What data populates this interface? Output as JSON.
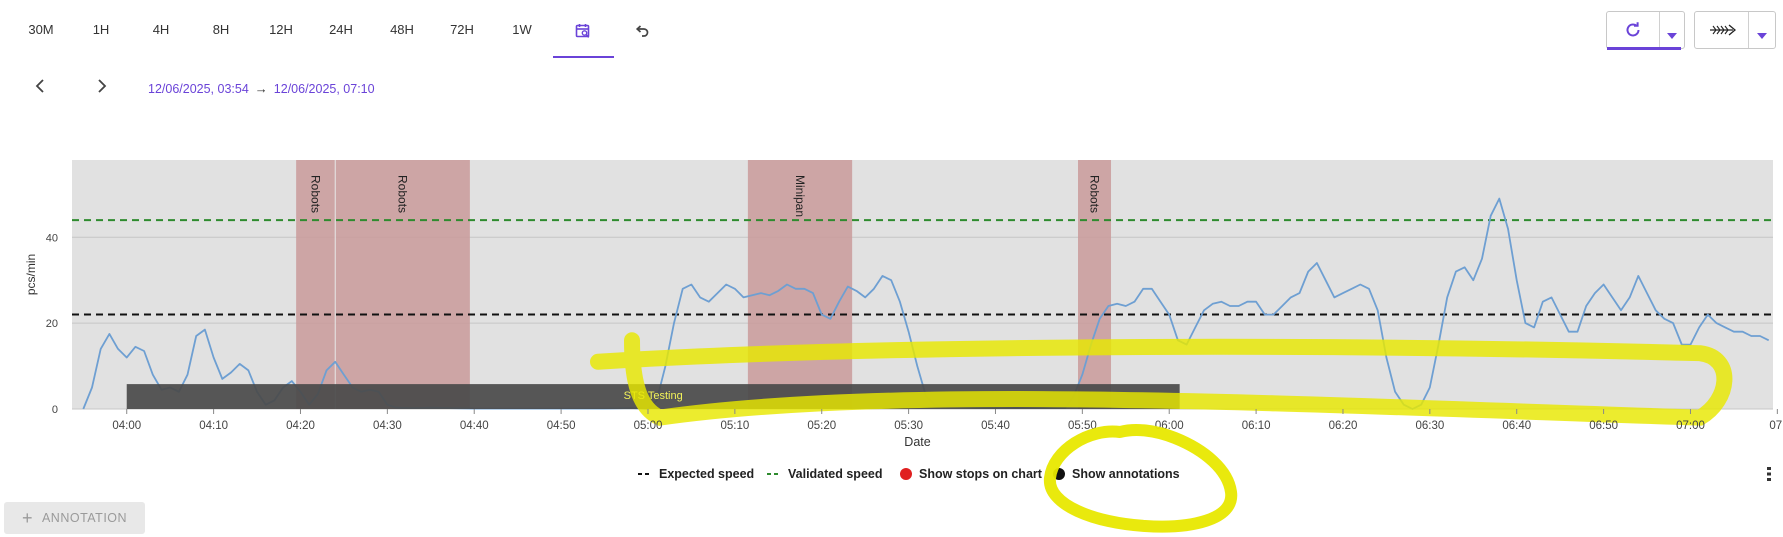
{
  "toolbar": {
    "ranges": [
      "30M",
      "1H",
      "4H",
      "8H",
      "12H",
      "24H",
      "48H",
      "72H",
      "1W"
    ],
    "calendar_icon": "calendar-search-icon",
    "undo_icon": "undo-icon",
    "active": "calendar"
  },
  "navigation": {
    "prev_icon": "chevron-left-icon",
    "next_icon": "chevron-right-icon",
    "range_start": "12/06/2025, 03:54",
    "range_arrow": "→",
    "range_end": "12/06/2025, 07:10"
  },
  "actions": {
    "refresh_icon": "refresh-icon",
    "refresh_dropdown_icon": "caret-down-icon",
    "view_icon": "fish-line-icon",
    "view_dropdown_icon": "caret-down-icon"
  },
  "chart_data": {
    "type": "line",
    "xlabel": "Date",
    "ylabel": "pcs/min",
    "x_ticks": [
      "04:00",
      "04:10",
      "04:20",
      "04:30",
      "04:40",
      "04:50",
      "05:00",
      "05:10",
      "05:20",
      "05:30",
      "05:40",
      "05:50",
      "06:00",
      "06:10",
      "06:20",
      "06:30",
      "06:40",
      "06:50",
      "07:00",
      "07:"
    ],
    "y_ticks": [
      0,
      20,
      40
    ],
    "ylim": [
      0,
      58
    ],
    "x_range_minutes_from_0400": [
      -6.3,
      189.5
    ],
    "series": [
      {
        "name": "",
        "color": "#6e9fd2",
        "points": [
          [
            -5,
            0
          ],
          [
            -4,
            5
          ],
          [
            -3,
            14
          ],
          [
            -2,
            17.5
          ],
          [
            -1,
            14
          ],
          [
            0,
            12
          ],
          [
            1,
            14.5
          ],
          [
            2,
            13.5
          ],
          [
            3,
            8
          ],
          [
            4,
            4.5
          ],
          [
            5,
            5
          ],
          [
            6,
            4
          ],
          [
            7,
            8
          ],
          [
            8,
            17
          ],
          [
            9,
            18.5
          ],
          [
            10,
            12
          ],
          [
            11,
            7
          ],
          [
            12,
            8.5
          ],
          [
            13,
            10.5
          ],
          [
            14,
            9
          ],
          [
            15,
            4
          ],
          [
            16,
            1
          ],
          [
            17,
            2
          ],
          [
            18,
            5
          ],
          [
            19,
            6.5
          ],
          [
            20,
            4
          ],
          [
            21,
            1
          ],
          [
            22,
            3.5
          ],
          [
            23,
            9
          ],
          [
            24,
            11
          ],
          [
            25,
            8
          ],
          [
            26,
            5
          ],
          [
            27,
            4
          ],
          [
            28,
            4.5
          ],
          [
            29,
            4
          ],
          [
            30,
            1
          ],
          [
            31,
            0.3
          ],
          [
            33,
            0.2
          ],
          [
            35,
            0.3
          ],
          [
            40,
            0.1
          ],
          [
            50,
            0.1
          ],
          [
            55,
            0.1
          ],
          [
            58,
            0.2
          ],
          [
            60,
            0
          ],
          [
            61,
            2
          ],
          [
            62,
            10
          ],
          [
            63,
            20
          ],
          [
            64,
            28
          ],
          [
            65,
            29
          ],
          [
            66,
            26
          ],
          [
            67,
            25
          ],
          [
            68,
            27
          ],
          [
            69,
            29
          ],
          [
            70,
            28
          ],
          [
            71,
            26
          ],
          [
            72,
            26.5
          ],
          [
            73,
            27
          ],
          [
            74,
            26.5
          ],
          [
            75,
            27.5
          ],
          [
            76,
            29
          ],
          [
            77,
            28
          ],
          [
            78,
            28
          ],
          [
            79,
            27
          ],
          [
            80,
            22
          ],
          [
            81,
            21
          ],
          [
            82,
            25
          ],
          [
            83,
            28.5
          ],
          [
            84,
            27.5
          ],
          [
            85,
            26
          ],
          [
            86,
            28
          ],
          [
            87,
            31
          ],
          [
            88,
            30
          ],
          [
            89,
            25
          ],
          [
            90,
            18
          ],
          [
            91,
            10
          ],
          [
            92,
            3
          ],
          [
            93,
            1
          ],
          [
            94,
            0.5
          ],
          [
            95,
            0.8
          ],
          [
            96,
            0.5
          ],
          [
            98,
            0.3
          ],
          [
            100,
            0.2
          ],
          [
            105,
            0.2
          ],
          [
            108,
            0.2
          ],
          [
            109,
            3
          ],
          [
            110,
            8
          ],
          [
            111,
            15
          ],
          [
            112,
            21
          ],
          [
            113,
            24
          ],
          [
            114,
            24.5
          ],
          [
            115,
            24
          ],
          [
            116,
            25
          ],
          [
            117,
            28
          ],
          [
            118,
            28
          ],
          [
            119,
            25
          ],
          [
            120,
            22
          ],
          [
            121,
            16
          ],
          [
            122,
            15
          ],
          [
            123,
            19
          ],
          [
            124,
            23
          ],
          [
            125,
            24.5
          ],
          [
            126,
            25
          ],
          [
            127,
            24
          ],
          [
            128,
            24
          ],
          [
            129,
            25
          ],
          [
            130,
            25
          ],
          [
            131,
            22
          ],
          [
            132,
            22
          ],
          [
            133,
            24
          ],
          [
            134,
            26
          ],
          [
            135,
            27
          ],
          [
            136,
            32
          ],
          [
            137,
            34
          ],
          [
            138,
            30
          ],
          [
            139,
            26
          ],
          [
            140,
            27
          ],
          [
            141,
            28
          ],
          [
            142,
            29
          ],
          [
            143,
            28
          ],
          [
            144,
            23
          ],
          [
            145,
            12
          ],
          [
            146,
            4
          ],
          [
            147,
            1
          ],
          [
            148,
            0
          ],
          [
            149,
            1
          ],
          [
            150,
            5
          ],
          [
            151,
            15
          ],
          [
            152,
            26
          ],
          [
            153,
            32
          ],
          [
            154,
            33
          ],
          [
            155,
            30
          ],
          [
            156,
            35
          ],
          [
            157,
            45
          ],
          [
            158,
            49
          ],
          [
            159,
            42
          ],
          [
            160,
            30
          ],
          [
            161,
            20
          ],
          [
            162,
            19
          ],
          [
            163,
            25
          ],
          [
            164,
            26
          ],
          [
            165,
            22
          ],
          [
            166,
            18
          ],
          [
            167,
            18
          ],
          [
            168,
            24
          ],
          [
            169,
            27
          ],
          [
            170,
            29
          ],
          [
            171,
            26
          ],
          [
            172,
            23
          ],
          [
            173,
            26
          ],
          [
            174,
            31
          ],
          [
            175,
            27
          ],
          [
            176,
            23
          ],
          [
            177,
            21
          ],
          [
            178,
            20
          ],
          [
            179,
            15
          ],
          [
            180,
            15
          ],
          [
            181,
            19
          ],
          [
            182,
            22
          ],
          [
            183,
            20
          ],
          [
            184,
            19
          ],
          [
            185,
            18
          ],
          [
            186,
            18
          ],
          [
            187,
            17
          ],
          [
            188,
            17
          ],
          [
            189,
            16
          ]
        ]
      },
      {
        "name": "Expected speed",
        "color": "#111111",
        "dash": true,
        "constant": 22
      },
      {
        "name": "Validated speed",
        "color": "#2e8b2e",
        "dash": true,
        "constant": 44
      }
    ],
    "stop_bands": [
      {
        "label": "Robots",
        "from": 19.5,
        "to": 24
      },
      {
        "label": "Robots",
        "from": 24,
        "to": 39.5
      },
      {
        "label": "Minipan",
        "from": 71.5,
        "to": 83.5
      },
      {
        "label": "Robots",
        "from": 109.5,
        "to": 113.3
      }
    ],
    "annotations": [
      {
        "label": "STS Testing",
        "from": 0,
        "to": 121.2
      }
    ]
  },
  "legend": {
    "items": [
      {
        "label": "Expected speed",
        "color": "#111111",
        "kind": "dash"
      },
      {
        "label": "Validated speed",
        "color": "#2e8b2e",
        "kind": "dash"
      },
      {
        "label": "Show stops on chart",
        "color": "#e02020",
        "kind": "dot"
      },
      {
        "label": "Show annotations",
        "color": "#111111",
        "kind": "dot"
      }
    ],
    "menu_icon": "vertical-dots-icon"
  },
  "annotation_button": {
    "icon": "plus-icon",
    "label": "ANNOTATION"
  },
  "colors": {
    "accent": "#6a43d8",
    "plot_bg": "#e1e1e1",
    "stop_band": "#c99a9a",
    "annotation_bar": "#4a4a4a",
    "annotation_text": "#f2f25a",
    "highlighter": "#e8e800"
  }
}
